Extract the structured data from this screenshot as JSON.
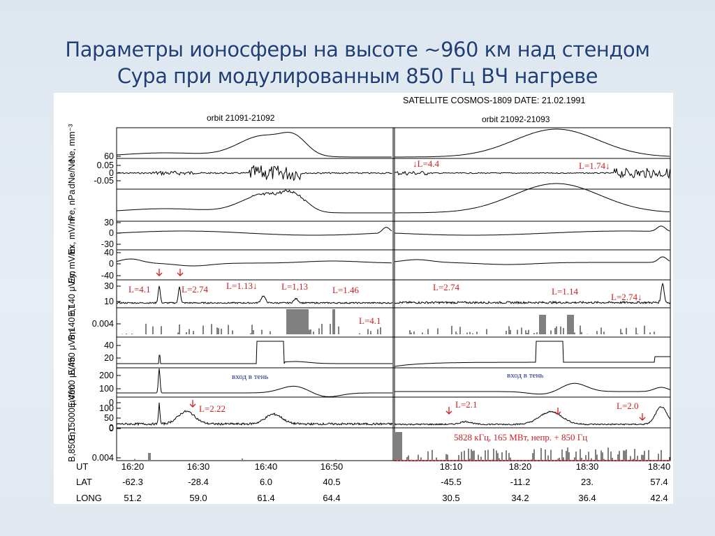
{
  "slide": {
    "title_line1": "Параметры ионосферы на высоте ~960 км над стендом",
    "title_line2": "Сура при модулированным 850 Гц ВЧ нагреве"
  },
  "chart_data": {
    "type": "line",
    "header": "SATELLITE  COSMOS-1809   DATE: 21.02.1991",
    "left_orbit": "orbit  21091-21092",
    "right_orbit": "orbit  21092-21093",
    "panels": [
      {
        "id": "ne",
        "label": "Ne, mm⁻³",
        "ticks": [
          "60"
        ]
      },
      {
        "id": "dne",
        "label": "dNe/Ne",
        "ticks": [
          "0.05",
          "0",
          "-0.05"
        ]
      },
      {
        "id": "pe",
        "label": "Pe, nPa",
        "ticks": []
      },
      {
        "id": "ex",
        "label": "Ex, mV/m",
        "ticks": [
          "30",
          "0",
          "-30"
        ]
      },
      {
        "id": "ey",
        "label": "Ey, mV/m",
        "ticks": [
          "40",
          "0",
          "-40"
        ]
      },
      {
        "id": "e140",
        "label": "E,140 μV/m",
        "ticks": [
          "30",
          "10"
        ]
      },
      {
        "id": "b140",
        "label": "B,140 nT",
        "ticks": [
          "0.004"
        ]
      },
      {
        "id": "e450",
        "label": "E,450 μV/m",
        "ticks": [
          "40",
          "20"
        ]
      },
      {
        "id": "e4600",
        "label": "E,4600 μV/m",
        "ticks": [
          "200",
          "100",
          "0"
        ]
      },
      {
        "id": "e15000",
        "label": "E,15000 μV/m",
        "ticks": [
          "100",
          "50",
          "0"
        ]
      },
      {
        "id": "b850",
        "label": "B,850 nT",
        "ticks": [
          "0",
          "0.004"
        ]
      }
    ],
    "x_axis": {
      "row_labels": [
        "UT",
        "LAT",
        "LONG"
      ],
      "left": {
        "ut": [
          "16:20",
          "16:30",
          "16:40",
          "16:50"
        ],
        "lat": [
          "-62.3",
          "-28.4",
          "6.0",
          "40.5"
        ],
        "long": [
          "51.2",
          "59.0",
          "61.4",
          "64.4"
        ]
      },
      "right": {
        "ut": [
          "18:10",
          "18:20",
          "18:30",
          "18:40"
        ],
        "lat": [
          "-45.5",
          "-11.2",
          "23.",
          "57.4"
        ],
        "long": [
          "30.5",
          "34.2",
          "36.4",
          "42.4"
        ]
      }
    },
    "annotations": {
      "dne_left": "↓L=4.4",
      "dne_right": "L=1.74↓",
      "e140": [
        "L=4.1",
        "L=2.74",
        "L=1.13↓",
        "L=1,13",
        "L=1.46",
        "L=2.74",
        "L=1.14",
        "L=2.74↓"
      ],
      "b140": "L=4.1",
      "shadow_left": "вход в тень",
      "shadow_right": "вход в тень",
      "e15000": [
        "L=2.22",
        "L=2.1",
        "L=2.0"
      ],
      "heating": "5828 кГц, 165 МВт, непр. + 850 Гц"
    },
    "colors": {
      "trace": "#000000",
      "annotation": "#cc1f1f",
      "shadow_text": "#1f2a8a",
      "title": "#1f3f7a"
    }
  }
}
